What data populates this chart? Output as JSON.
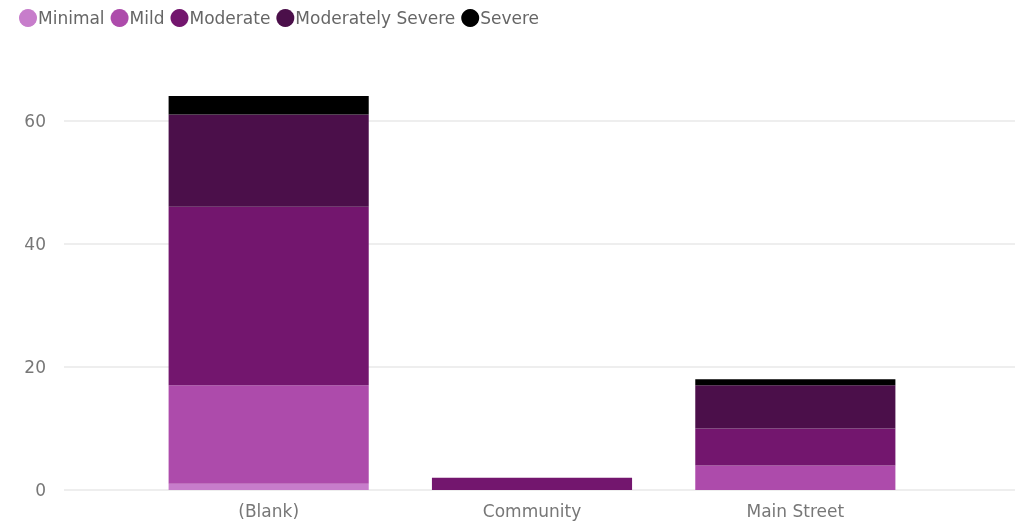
{
  "chart_data": {
    "type": "bar",
    "stacked": true,
    "categories": [
      "(Blank)",
      "Community",
      "Main Street"
    ],
    "series": [
      {
        "name": "Minimal",
        "color": "#c77dcb",
        "values": [
          1,
          0,
          0
        ]
      },
      {
        "name": "Mild",
        "color": "#ad4bab",
        "values": [
          16,
          0,
          4
        ]
      },
      {
        "name": "Moderate",
        "color": "#73166e",
        "values": [
          29,
          2,
          6
        ]
      },
      {
        "name": "Moderately Severe",
        "color": "#4b0f4a",
        "values": [
          15,
          0,
          7
        ]
      },
      {
        "name": "Severe",
        "color": "#000000",
        "values": [
          3,
          0,
          1
        ]
      }
    ],
    "ylim": [
      0,
      64
    ],
    "yticks": [
      0,
      20,
      40,
      60
    ],
    "grid": "y",
    "legend": "top left"
  }
}
